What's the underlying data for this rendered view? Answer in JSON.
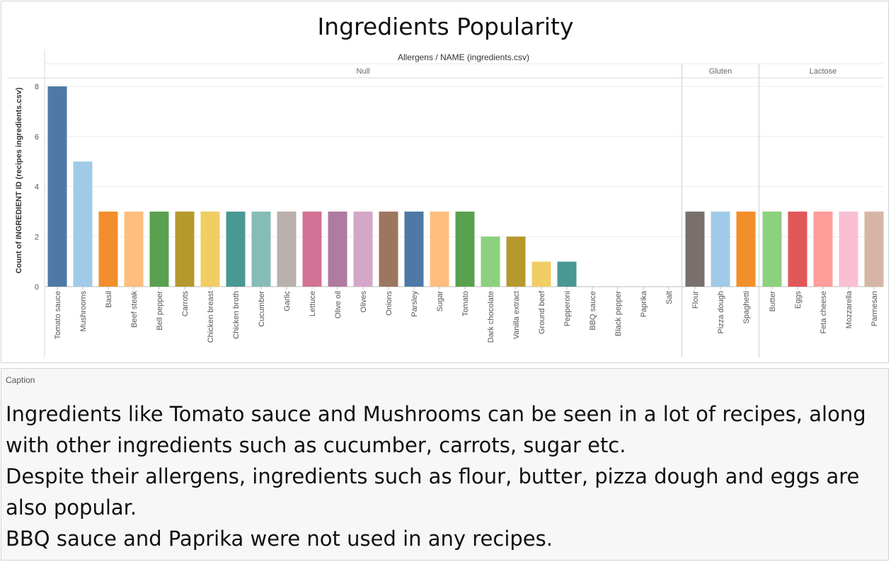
{
  "chart_data": {
    "type": "bar",
    "title": "Ingredients Popularity",
    "column_header": "Allergens / NAME (ingredients.csv)",
    "ylabel": "Count of INGREDIENT ID (recipes ingredients.csv)",
    "ylim": [
      0,
      8.2
    ],
    "yticks": [
      "0",
      "2",
      "4",
      "6",
      "8"
    ],
    "grid": true,
    "groups": [
      {
        "name": "Null",
        "categories": [
          "Tomato sauce",
          "Mushrooms",
          "Basil",
          "Beef steak",
          "Bell pepper",
          "Carrots",
          "Chicken breast",
          "Chicken broth",
          "Cucumber",
          "Garlic",
          "Lettuce",
          "Olive oil",
          "Olives",
          "Onions",
          "Parsley",
          "Sugar",
          "Tomato",
          "Dark chocolate",
          "Vanilla extract",
          "Ground beef",
          "Pepperoni",
          "BBQ sauce",
          "Black pepper",
          "Paprika",
          "Salt"
        ],
        "values": [
          8,
          5,
          3,
          3,
          3,
          3,
          3,
          3,
          3,
          3,
          3,
          3,
          3,
          3,
          3,
          3,
          3,
          2,
          2,
          1,
          1,
          0,
          0,
          0,
          0
        ],
        "colors": [
          "#4e79a7",
          "#a0cbe8",
          "#f28e2b",
          "#ffbe7d",
          "#59a14f",
          "#b6992d",
          "#f1ce63",
          "#499894",
          "#86bcb6",
          "#bab0ac",
          "#d37295",
          "#b07aa1",
          "#d4a6c8",
          "#9d7660",
          "#4e79a7",
          "#ffbe7d",
          "#59a14f",
          "#8cd17d",
          "#b6992d",
          "#f1ce63",
          "#499894",
          "#86bcb6",
          "#bab0ac",
          "#d37295",
          "#b07aa1"
        ]
      },
      {
        "name": "Gluten",
        "categories": [
          "Flour",
          "Pizza dough",
          "Spaghetti"
        ],
        "values": [
          3,
          3,
          3
        ],
        "colors": [
          "#79706e",
          "#a0cbe8",
          "#f28e2b"
        ]
      },
      {
        "name": "Lactose",
        "categories": [
          "Butter",
          "Eggs",
          "Feta cheese",
          "Mozzarella",
          "Parmesan"
        ],
        "values": [
          3,
          3,
          3,
          3,
          3
        ],
        "colors": [
          "#8cd17d",
          "#e15759",
          "#ff9d9a",
          "#fabfd2",
          "#d7b5a6"
        ]
      }
    ]
  },
  "caption": {
    "label": "Caption",
    "lines": [
      "Ingredients like Tomato sauce and Mushrooms can be seen in a lot of recipes, along",
      "with other ingredients such as cucumber, carrots, sugar etc.",
      "Despite their allergens, ingredients such as flour, butter, pizza dough and eggs are",
      "also popular.",
      "BBQ sauce and Paprika were not used in any recipes."
    ]
  }
}
